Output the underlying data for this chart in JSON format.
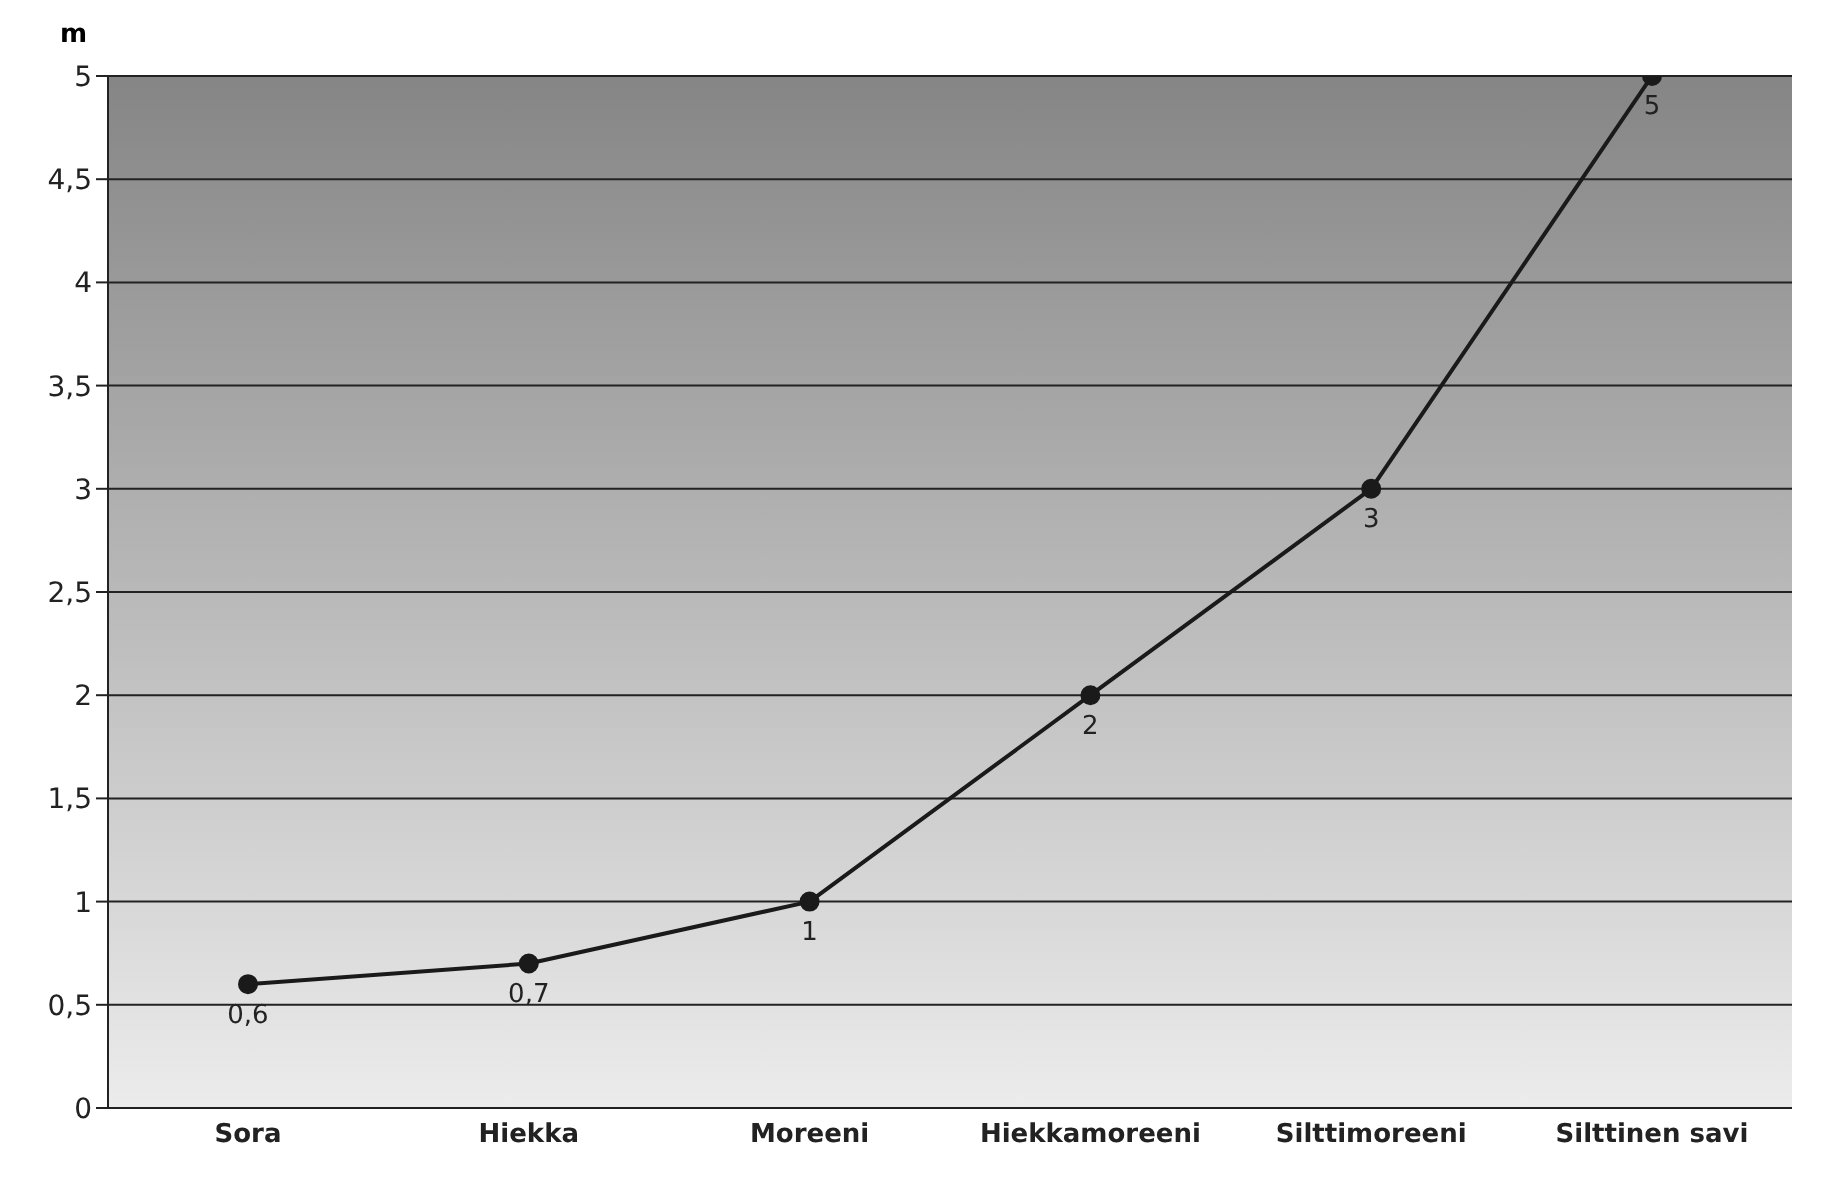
{
  "chart_data": {
    "type": "line",
    "ylabel": "m",
    "categories": [
      "Sora",
      "Hiekka",
      "Moreeni",
      "Hiekkamoreeni",
      "Silttimoreeni",
      "Silttinen savi"
    ],
    "series": [
      {
        "color": "#1a1a1a",
        "values": [
          0.6,
          0.7,
          1,
          2,
          3,
          5
        ],
        "value_labels": [
          "0,6",
          "0,7",
          "1",
          "2",
          "3",
          "5"
        ]
      }
    ],
    "ylim": [
      0,
      5
    ],
    "yticks": [
      0,
      {
        "value": 0.5,
        "label": "0,5"
      },
      1,
      {
        "value": 1.5,
        "label": "1,5"
      },
      2,
      {
        "value": 2.5,
        "label": "2,5"
      },
      3,
      {
        "value": 3.5,
        "label": "3,5"
      },
      4,
      {
        "value": 4.5,
        "label": "4,5"
      },
      5
    ],
    "grid": "y",
    "marker": "circle",
    "line_style": "solid",
    "legend": false
  }
}
